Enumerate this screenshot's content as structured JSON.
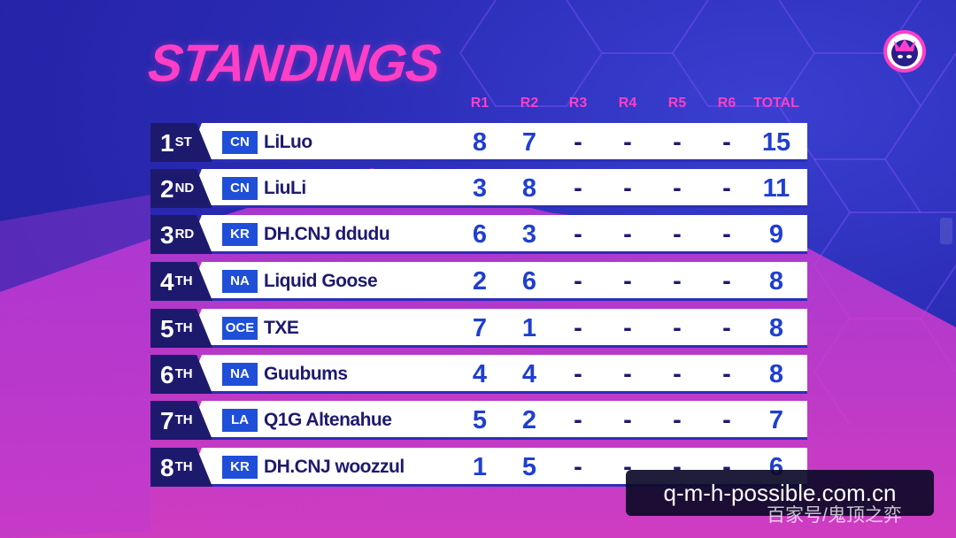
{
  "header": {
    "title": "STANDINGS"
  },
  "columns": [
    "R1",
    "R2",
    "R3",
    "R4",
    "R5",
    "R6",
    "TOTAL"
  ],
  "rows": [
    {
      "rank": "1",
      "suffix": "ST",
      "region": "CN",
      "player": "LiLuo",
      "r1": "8",
      "r2": "7",
      "r3": "-",
      "r4": "-",
      "r5": "-",
      "r6": "-",
      "total": "15"
    },
    {
      "rank": "2",
      "suffix": "ND",
      "region": "CN",
      "player": "LiuLi",
      "r1": "3",
      "r2": "8",
      "r3": "-",
      "r4": "-",
      "r5": "-",
      "r6": "-",
      "total": "11"
    },
    {
      "rank": "3",
      "suffix": "RD",
      "region": "KR",
      "player": "DH.CNJ ddudu",
      "r1": "6",
      "r2": "3",
      "r3": "-",
      "r4": "-",
      "r5": "-",
      "r6": "-",
      "total": "9"
    },
    {
      "rank": "4",
      "suffix": "TH",
      "region": "NA",
      "player": "Liquid Goose",
      "r1": "2",
      "r2": "6",
      "r3": "-",
      "r4": "-",
      "r5": "-",
      "r6": "-",
      "total": "8"
    },
    {
      "rank": "5",
      "suffix": "TH",
      "region": "OCE",
      "player": "TXE",
      "r1": "7",
      "r2": "1",
      "r3": "-",
      "r4": "-",
      "r5": "-",
      "r6": "-",
      "total": "8"
    },
    {
      "rank": "6",
      "suffix": "TH",
      "region": "NA",
      "player": "Guubums",
      "r1": "4",
      "r2": "4",
      "r3": "-",
      "r4": "-",
      "r5": "-",
      "r6": "-",
      "total": "8"
    },
    {
      "rank": "7",
      "suffix": "TH",
      "region": "LA",
      "player": "Q1G Altenahue",
      "r1": "5",
      "r2": "2",
      "r3": "-",
      "r4": "-",
      "r5": "-",
      "r6": "-",
      "total": "7"
    },
    {
      "rank": "8",
      "suffix": "TH",
      "region": "KR",
      "player": "DH.CNJ woozzul",
      "r1": "1",
      "r2": "5",
      "r3": "-",
      "r4": "-",
      "r5": "-",
      "r6": "-",
      "total": "6"
    }
  ],
  "watermark": {
    "url": "q-m-h-possible.com.cn",
    "source": "百家号/鬼顶之弈"
  },
  "icons": {
    "logo": "crowned-mascot-badge-icon"
  },
  "colors": {
    "title": "#ff3fc6",
    "rank_bg": "#1d1a6e",
    "region_bg": "#1f4fd8",
    "score": "#1f3fd0",
    "row_bg": "#ffffff"
  }
}
